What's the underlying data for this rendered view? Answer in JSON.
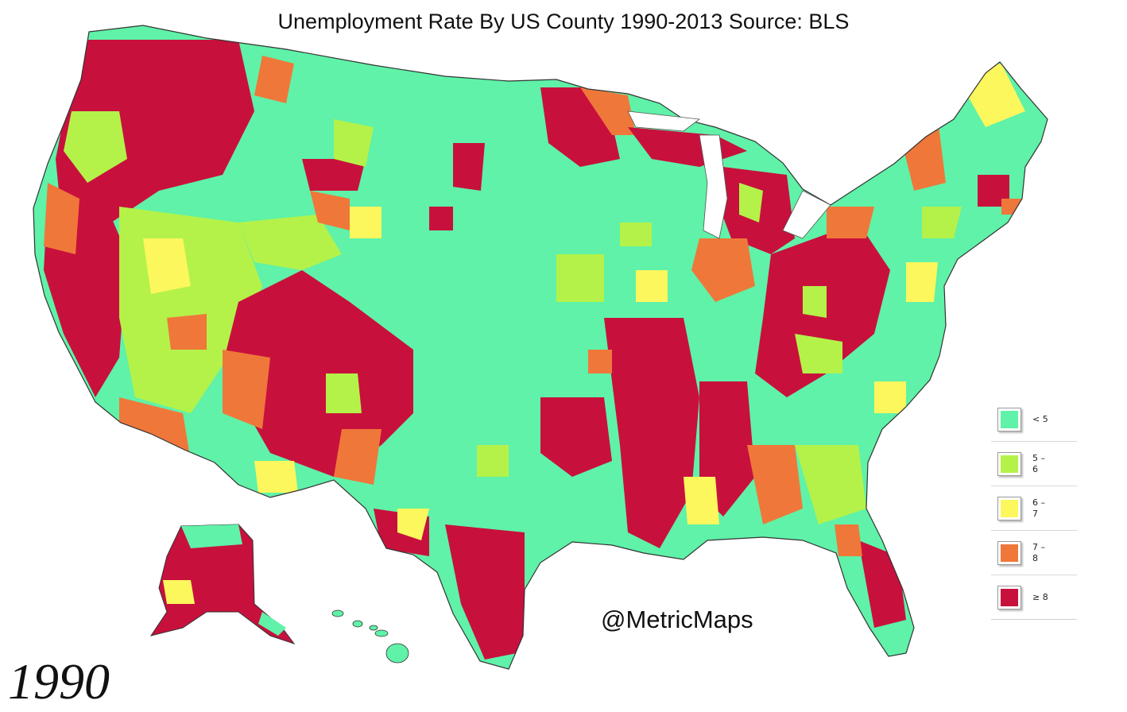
{
  "title": "Unemployment Rate By US County 1990-2013 Source: BLS",
  "year": "1990",
  "credit": "@MetricMaps",
  "legend": [
    {
      "label": "< 5",
      "color": "#5ff2a8"
    },
    {
      "label": "5 –\n6",
      "color": "#b4f249"
    },
    {
      "label": "6 –\n7",
      "color": "#fbf75d"
    },
    {
      "label": "7 –\n8",
      "color": "#f0773a"
    },
    {
      "label": "≥ 8",
      "color": "#c8103d"
    }
  ]
}
